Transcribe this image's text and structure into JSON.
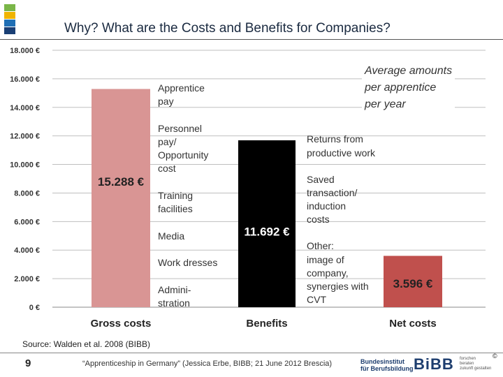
{
  "slide": {
    "title": "Why? What are the Costs and Benefits for Companies?",
    "average_note_lines": [
      "Average amounts",
      "per apprentice",
      "per year"
    ],
    "source": "Source: Walden et al. 2008 (BIBB)",
    "page_number": "9",
    "footer_text": "“Apprenticeship in Germany” (Jessica Erbe, BIBB; 21 June 2012 Brescia)",
    "logo": {
      "left_lines": [
        "Bundesinstitut",
        "für Berufsbildung"
      ],
      "main": "BiBB",
      "right_lines": [
        "forschen",
        "beraten",
        "zukunft gestalten"
      ],
      "copyright": "©"
    },
    "logo_square_colors": [
      "#7ab648",
      "#f0b400",
      "#1f6fb5",
      "#1a3f75"
    ]
  },
  "chart_data": {
    "type": "bar",
    "categories": [
      "Gross costs",
      "Benefits",
      "Net costs"
    ],
    "values": [
      15288,
      11692,
      3596
    ],
    "value_labels": [
      "15.288 €",
      "11.692 €",
      "3.596 €"
    ],
    "colors": [
      "#d99594",
      "#000000",
      "#c0504d"
    ],
    "label_colors": [
      "#222222",
      "#ffffff",
      "#222222"
    ],
    "ylim": [
      0,
      18000
    ],
    "yticks": [
      0,
      2000,
      4000,
      6000,
      8000,
      10000,
      12000,
      14000,
      16000,
      18000
    ],
    "ytick_labels": [
      "0 €",
      "2.000 €",
      "4.000 €",
      "6.000 €",
      "8.000 €",
      "10.000 €",
      "12.000 €",
      "14.000 €",
      "16.000 €",
      "18.000 €"
    ],
    "grid": true,
    "annotations": {
      "gross_costs": [
        "Apprentice",
        "pay",
        "Personnel",
        "pay/",
        "Opportunity",
        "cost",
        "Training",
        "facilities",
        "Media",
        "Work dresses",
        "Admini-",
        "stration"
      ],
      "benefits": [
        "Returns from",
        "productive work",
        "Saved",
        "transaction/",
        "induction",
        "costs",
        "Other:",
        "image of",
        "company,",
        "synergies with",
        "CVT"
      ]
    }
  }
}
